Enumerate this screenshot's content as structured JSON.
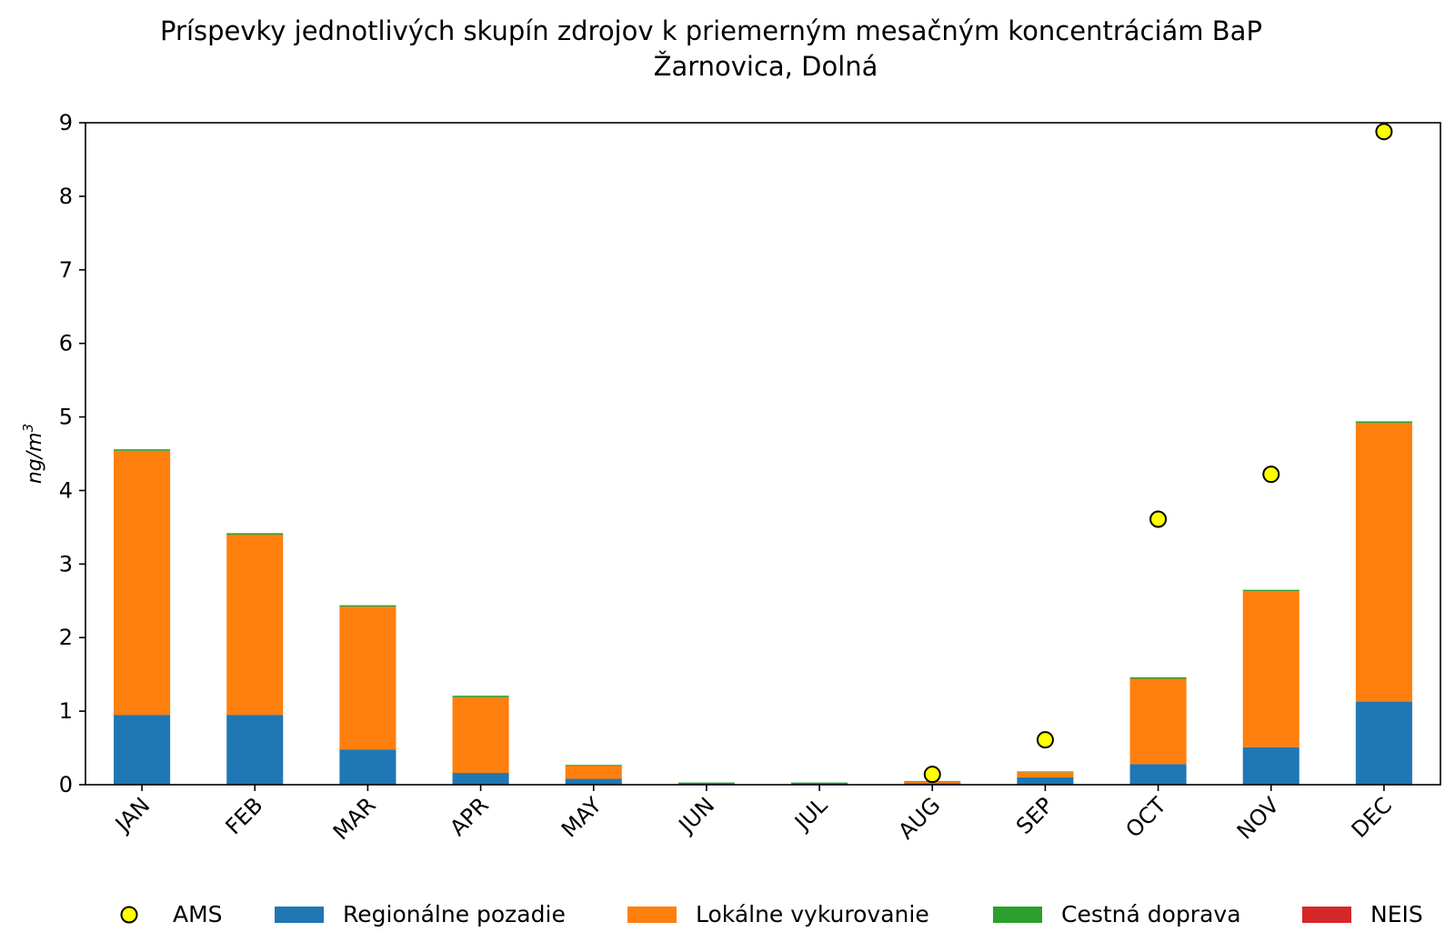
{
  "chart_data": {
    "type": "bar",
    "stacked": true,
    "title": "Príspevky jednotlivých skupín zdrojov k priemerným mesačným koncentráciám BaP",
    "subtitle": "Žarnovica, Dolná",
    "xlabel": "",
    "ylabel": "ng/m",
    "ylabel_sup": "3",
    "ylim": [
      0,
      9
    ],
    "yticks": [
      "0",
      "1",
      "2",
      "3",
      "4",
      "5",
      "6",
      "7",
      "8",
      "9"
    ],
    "grid": false,
    "legend_position": "bottom",
    "categories": [
      "JAN",
      "FEB",
      "MAR",
      "APR",
      "MAY",
      "JUN",
      "JUL",
      "AUG",
      "SEP",
      "OCT",
      "NOV",
      "DEC"
    ],
    "series": [
      {
        "name": "Regionálne pozadie",
        "color": "#1f77b4",
        "values": [
          0.95,
          0.95,
          0.48,
          0.16,
          0.08,
          0.02,
          0.02,
          0.02,
          0.1,
          0.28,
          0.51,
          1.13
        ]
      },
      {
        "name": "Lokálne vykurovanie",
        "color": "#ff7f0e",
        "values": [
          3.59,
          2.45,
          1.94,
          1.03,
          0.18,
          0.0,
          0.0,
          0.02,
          0.07,
          1.16,
          2.12,
          3.79
        ]
      },
      {
        "name": "Cestná doprava",
        "color": "#2ca02c",
        "values": [
          0.02,
          0.02,
          0.02,
          0.02,
          0.01,
          0.01,
          0.01,
          0.01,
          0.01,
          0.02,
          0.02,
          0.02
        ]
      },
      {
        "name": "NEIS",
        "color": "#d62728",
        "values": [
          0.0,
          0.0,
          0.0,
          0.0,
          0.0,
          0.0,
          0.0,
          0.0,
          0.0,
          0.0,
          0.0,
          0.0
        ]
      }
    ],
    "points": {
      "name": "AMS",
      "color": "#ffff00",
      "edge_color": "#000000",
      "values": [
        null,
        null,
        null,
        null,
        null,
        null,
        null,
        0.14,
        0.61,
        3.61,
        4.22,
        8.88
      ]
    },
    "legend_order": [
      "AMS",
      "Regionálne pozadie",
      "Lokálne vykurovanie",
      "Cestná doprava",
      "NEIS"
    ]
  }
}
